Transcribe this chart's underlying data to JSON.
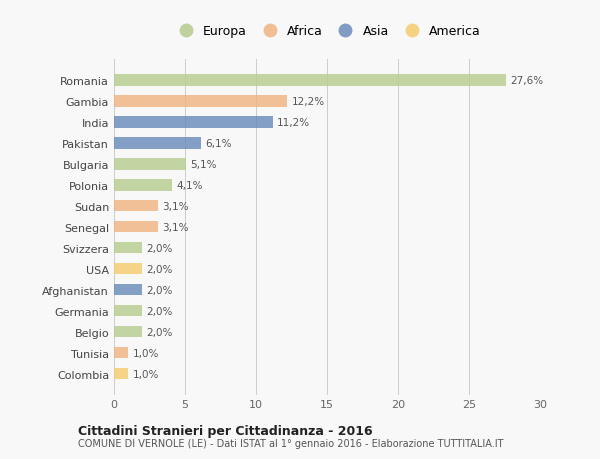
{
  "countries": [
    "Romania",
    "Gambia",
    "India",
    "Pakistan",
    "Bulgaria",
    "Polonia",
    "Sudan",
    "Senegal",
    "Svizzera",
    "USA",
    "Afghanistan",
    "Germania",
    "Belgio",
    "Tunisia",
    "Colombia"
  ],
  "values": [
    27.6,
    12.2,
    11.2,
    6.1,
    5.1,
    4.1,
    3.1,
    3.1,
    2.0,
    2.0,
    2.0,
    2.0,
    2.0,
    1.0,
    1.0
  ],
  "labels": [
    "27,6%",
    "12,2%",
    "11,2%",
    "6,1%",
    "5,1%",
    "4,1%",
    "3,1%",
    "3,1%",
    "2,0%",
    "2,0%",
    "2,0%",
    "2,0%",
    "2,0%",
    "1,0%",
    "1,0%"
  ],
  "bar_colors": [
    "#b5cc8e",
    "#f0b482",
    "#6b8cba",
    "#6b8cba",
    "#b5cc8e",
    "#b5cc8e",
    "#f0b482",
    "#f0b482",
    "#b5cc8e",
    "#f5cc6e",
    "#6b8cba",
    "#b5cc8e",
    "#b5cc8e",
    "#f0b482",
    "#f5cc6e"
  ],
  "xlim": [
    0,
    30
  ],
  "xticks": [
    0,
    5,
    10,
    15,
    20,
    25,
    30
  ],
  "title": "Cittadini Stranieri per Cittadinanza - 2016",
  "subtitle": "COMUNE DI VERNOLE (LE) - Dati ISTAT al 1° gennaio 2016 - Elaborazione TUTTITALIA.IT",
  "background_color": "#f8f8f8",
  "legend_labels": [
    "Europa",
    "Africa",
    "Asia",
    "America"
  ],
  "legend_colors": [
    "#b5cc8e",
    "#f0b482",
    "#6b8cba",
    "#f5cc6e"
  ]
}
